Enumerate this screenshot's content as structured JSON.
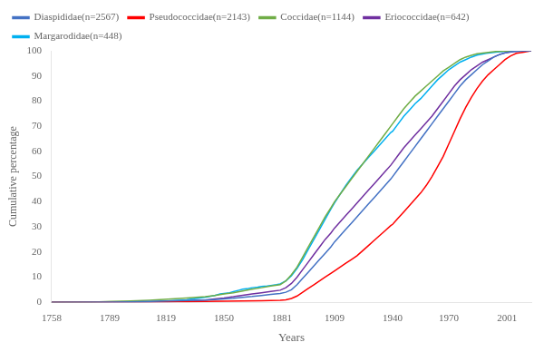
{
  "chart_data": {
    "type": "line",
    "xlabel": "Years",
    "ylabel": "Cumulative percentage",
    "xlim": [
      1758,
      2014
    ],
    "ylim": [
      0,
      100
    ],
    "xticks": [
      1758,
      1789,
      1819,
      1850,
      1881,
      1909,
      1940,
      1970,
      2001
    ],
    "yticks": [
      0,
      10,
      20,
      30,
      40,
      50,
      60,
      70,
      80,
      90,
      100
    ],
    "grid": false,
    "legend": "upper left",
    "series": [
      {
        "name": "Diaspididae(n=2567)",
        "color": "#4472C4",
        "x": [
          1758,
          1790,
          1800,
          1810,
          1820,
          1830,
          1840,
          1845,
          1850,
          1855,
          1860,
          1865,
          1870,
          1875,
          1880,
          1883,
          1886,
          1889,
          1892,
          1895,
          1898,
          1901,
          1904,
          1907,
          1909,
          1912,
          1915,
          1918,
          1921,
          1924,
          1927,
          1930,
          1933,
          1936,
          1939,
          1940,
          1943,
          1946,
          1949,
          1952,
          1955,
          1958,
          1961,
          1964,
          1967,
          1970,
          1973,
          1976,
          1979,
          1982,
          1985,
          1988,
          1991,
          1994,
          1997,
          2000,
          2003,
          2006,
          2010,
          2014
        ],
        "values": [
          0,
          0.1,
          0.2,
          0.3,
          0.5,
          0.7,
          0.9,
          1.1,
          1.3,
          1.6,
          2.0,
          2.3,
          2.7,
          3.1,
          3.5,
          4.0,
          5.0,
          7.0,
          9.5,
          12.0,
          14.5,
          17.0,
          19.5,
          22.0,
          24.0,
          26.5,
          29.0,
          31.5,
          34.0,
          36.5,
          39.0,
          41.5,
          44.0,
          46.5,
          49.0,
          50.0,
          53.0,
          56.0,
          59.0,
          62.0,
          65.0,
          68.0,
          71.0,
          74.0,
          77.0,
          80.0,
          83.0,
          86.0,
          88.5,
          90.5,
          92.5,
          94.5,
          96.0,
          97.5,
          98.5,
          99.2,
          99.6,
          99.8,
          99.9,
          100.0
        ]
      },
      {
        "name": "Pseudococcidae(n=2143)",
        "color": "#FF0000",
        "x": [
          1758,
          1800,
          1810,
          1820,
          1830,
          1840,
          1850,
          1860,
          1870,
          1875,
          1880,
          1883,
          1886,
          1889,
          1892,
          1895,
          1898,
          1901,
          1904,
          1907,
          1909,
          1912,
          1915,
          1918,
          1921,
          1924,
          1927,
          1930,
          1933,
          1936,
          1939,
          1940,
          1943,
          1946,
          1949,
          1952,
          1955,
          1958,
          1961,
          1964,
          1967,
          1970,
          1973,
          1976,
          1979,
          1982,
          1985,
          1988,
          1991,
          1994,
          1997,
          2000,
          2003,
          2006,
          2010,
          2014
        ],
        "values": [
          0,
          0.05,
          0.1,
          0.15,
          0.2,
          0.3,
          0.4,
          0.5,
          0.6,
          0.7,
          0.8,
          1.0,
          1.5,
          2.5,
          4.0,
          5.5,
          7.0,
          8.5,
          10.0,
          11.5,
          12.5,
          14.0,
          15.5,
          17.0,
          18.5,
          20.5,
          22.5,
          24.5,
          26.5,
          28.5,
          30.5,
          31.0,
          33.5,
          36.0,
          38.5,
          41.0,
          43.5,
          46.5,
          50.0,
          54.0,
          58.0,
          63.0,
          68.0,
          73.0,
          77.5,
          81.5,
          85.0,
          88.0,
          90.5,
          92.5,
          94.5,
          96.5,
          98.0,
          99.0,
          99.5,
          100.0
        ]
      },
      {
        "name": "Coccidae(n=1144)",
        "color": "#70AD47",
        "x": [
          1758,
          1780,
          1790,
          1800,
          1810,
          1820,
          1830,
          1840,
          1845,
          1850,
          1855,
          1860,
          1865,
          1870,
          1875,
          1880,
          1883,
          1886,
          1889,
          1892,
          1895,
          1898,
          1901,
          1904,
          1907,
          1909,
          1912,
          1915,
          1918,
          1921,
          1924,
          1927,
          1930,
          1933,
          1936,
          1939,
          1940,
          1943,
          1946,
          1949,
          1952,
          1955,
          1958,
          1961,
          1964,
          1967,
          1970,
          1973,
          1976,
          1979,
          1982,
          1985,
          1990,
          1995,
          2000,
          2014
        ],
        "values": [
          0,
          0.1,
          0.3,
          0.5,
          0.8,
          1.2,
          1.7,
          2.2,
          2.7,
          3.3,
          3.8,
          4.5,
          5.2,
          5.8,
          6.5,
          7.0,
          8.5,
          11.0,
          14.0,
          18.0,
          22.0,
          26.0,
          30.0,
          34.0,
          37.5,
          40.0,
          43.0,
          46.0,
          49.0,
          52.0,
          55.0,
          58.0,
          61.0,
          64.0,
          67.0,
          70.0,
          71.0,
          74.0,
          77.0,
          79.5,
          82.0,
          84.0,
          86.0,
          88.0,
          90.0,
          92.0,
          93.5,
          95.0,
          96.5,
          97.5,
          98.2,
          98.8,
          99.3,
          99.7,
          99.9,
          100.0
        ]
      },
      {
        "name": "Eriococcidae(n=642)",
        "color": "#7030A0",
        "x": [
          1758,
          1820,
          1830,
          1840,
          1845,
          1850,
          1855,
          1860,
          1865,
          1870,
          1875,
          1880,
          1883,
          1886,
          1889,
          1892,
          1895,
          1898,
          1901,
          1904,
          1907,
          1909,
          1912,
          1915,
          1918,
          1921,
          1924,
          1927,
          1930,
          1933,
          1936,
          1939,
          1940,
          1943,
          1946,
          1949,
          1952,
          1955,
          1958,
          1961,
          1964,
          1967,
          1970,
          1973,
          1976,
          1979,
          1982,
          1985,
          1988,
          1991,
          1994,
          1997,
          2000,
          2005,
          2010,
          2014
        ],
        "values": [
          0,
          0.2,
          0.5,
          0.9,
          1.3,
          1.7,
          2.2,
          2.8,
          3.3,
          3.8,
          4.3,
          4.8,
          5.8,
          7.5,
          10.0,
          13.0,
          16.0,
          19.0,
          22.0,
          25.0,
          27.5,
          29.5,
          32.0,
          34.5,
          37.0,
          39.5,
          42.0,
          44.5,
          47.0,
          49.5,
          52.0,
          54.5,
          55.5,
          58.5,
          61.5,
          64.0,
          66.5,
          69.0,
          71.5,
          74.0,
          77.0,
          80.0,
          83.0,
          86.0,
          88.5,
          90.5,
          92.5,
          94.0,
          95.5,
          96.5,
          97.5,
          98.5,
          99.2,
          99.7,
          99.9,
          100.0
        ]
      },
      {
        "name": "Margarodidae(n=448)",
        "color": "#00B0F0",
        "x": [
          1758,
          1810,
          1820,
          1830,
          1835,
          1840,
          1845,
          1848,
          1850,
          1853,
          1855,
          1858,
          1860,
          1863,
          1865,
          1868,
          1870,
          1873,
          1875,
          1878,
          1880,
          1883,
          1886,
          1889,
          1892,
          1895,
          1898,
          1901,
          1904,
          1907,
          1909,
          1912,
          1915,
          1918,
          1921,
          1924,
          1927,
          1930,
          1933,
          1936,
          1939,
          1940,
          1943,
          1946,
          1949,
          1952,
          1955,
          1958,
          1961,
          1964,
          1967,
          1970,
          1973,
          1976,
          1979,
          1982,
          1985,
          1990,
          1995,
          2000,
          2014
        ],
        "values": [
          0,
          0.2,
          0.5,
          1.0,
          1.5,
          2.0,
          2.7,
          3.3,
          3.5,
          3.8,
          4.2,
          4.8,
          5.2,
          5.5,
          5.8,
          6.0,
          6.3,
          6.5,
          6.7,
          7.0,
          7.3,
          8.5,
          10.5,
          13.5,
          17.0,
          21.0,
          25.0,
          29.0,
          33.0,
          37.0,
          39.5,
          43.0,
          46.5,
          49.5,
          52.5,
          55.0,
          57.5,
          60.0,
          62.5,
          65.0,
          67.5,
          68.0,
          71.0,
          74.0,
          76.5,
          79.0,
          81.0,
          83.5,
          86.0,
          88.5,
          90.5,
          92.5,
          94.0,
          95.5,
          96.5,
          97.5,
          98.3,
          99.0,
          99.5,
          99.8,
          100.0
        ]
      }
    ]
  }
}
